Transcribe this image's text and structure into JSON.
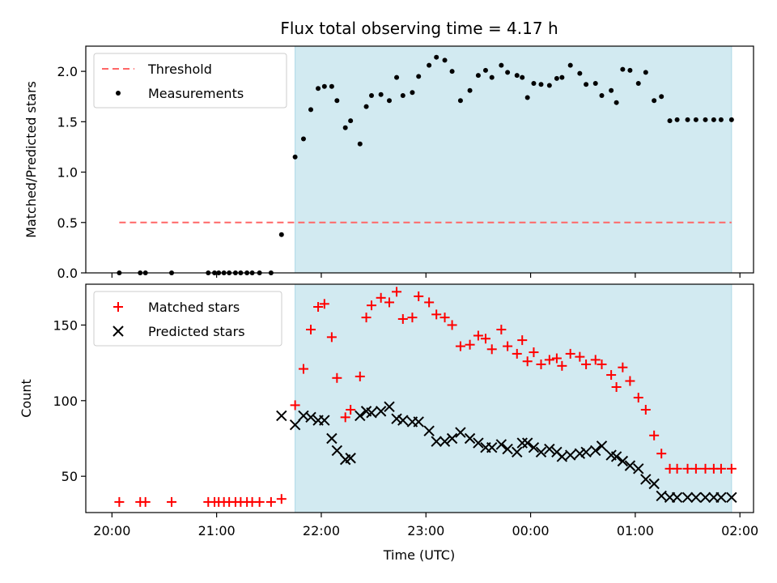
{
  "title": "Flux total observing time = 4.17 h",
  "xlabel": "Time (UTC)",
  "colors": {
    "shade": "#add8e6",
    "threshold": "#ff6666",
    "measurements": "#000000",
    "matched": "#ff0000",
    "predicted": "#000000"
  },
  "chart_data": [
    {
      "type": "scatter",
      "panel": "top",
      "ylabel": "Matched/Predicted stars",
      "ylim": [
        0,
        2.25
      ],
      "yticks": [
        0.0,
        0.5,
        1.0,
        1.5,
        2.0
      ],
      "ytick_labels": [
        "0.0",
        "0.5",
        "1.0",
        "1.5",
        "2.0"
      ],
      "x_unit": "hours since 20:00 UTC",
      "xlim": [
        -0.25,
        6.13
      ],
      "shaded_range": [
        1.75,
        5.92
      ],
      "legend": {
        "position": "top-left",
        "entries": [
          "Threshold",
          "Measurements"
        ]
      },
      "threshold": {
        "name": "Threshold",
        "y": 0.5,
        "x_range": [
          0.07,
          5.92
        ]
      },
      "series": [
        {
          "name": "Measurements",
          "x": [
            0.07,
            0.27,
            0.32,
            0.57,
            0.92,
            0.98,
            1.02,
            1.07,
            1.12,
            1.18,
            1.23,
            1.29,
            1.34,
            1.41,
            1.52,
            1.62,
            1.75,
            1.83,
            1.9,
            1.97,
            2.03,
            2.1,
            2.15,
            2.23,
            2.28,
            2.37,
            2.43,
            2.48,
            2.57,
            2.65,
            2.72,
            2.78,
            2.87,
            2.93,
            3.03,
            3.1,
            3.18,
            3.25,
            3.33,
            3.42,
            3.5,
            3.57,
            3.63,
            3.72,
            3.78,
            3.87,
            3.92,
            3.97,
            4.03,
            4.1,
            4.18,
            4.25,
            4.3,
            4.38,
            4.47,
            4.53,
            4.62,
            4.68,
            4.77,
            4.82,
            4.88,
            4.95,
            5.03,
            5.1,
            5.18,
            5.25,
            5.33,
            5.4,
            5.5,
            5.58,
            5.67,
            5.75,
            5.82,
            5.92
          ],
          "y": [
            0,
            0,
            0,
            0,
            0,
            0,
            0,
            0,
            0,
            0,
            0,
            0,
            0,
            0,
            0,
            0.38,
            1.15,
            1.33,
            1.62,
            1.83,
            1.85,
            1.85,
            1.71,
            1.44,
            1.51,
            1.28,
            1.65,
            1.76,
            1.77,
            1.71,
            1.94,
            1.76,
            1.79,
            1.95,
            2.06,
            2.14,
            2.11,
            2.0,
            1.71,
            1.81,
            1.96,
            2.01,
            1.94,
            2.06,
            1.99,
            1.96,
            1.94,
            1.74,
            1.88,
            1.87,
            1.86,
            1.93,
            1.94,
            2.06,
            1.98,
            1.87,
            1.88,
            1.76,
            1.81,
            1.69,
            2.02,
            2.01,
            1.88,
            1.99,
            1.71,
            1.75,
            1.51,
            1.52,
            1.52,
            1.52,
            1.52,
            1.52,
            1.52,
            1.52
          ]
        }
      ]
    },
    {
      "type": "scatter",
      "panel": "bottom",
      "ylabel": "Count",
      "ylim": [
        26,
        177
      ],
      "yticks": [
        50,
        100,
        150
      ],
      "ytick_labels": [
        "50",
        "100",
        "150"
      ],
      "x_unit": "hours since 20:00 UTC",
      "xlim": [
        -0.25,
        6.13
      ],
      "xticks": [
        0,
        1,
        2,
        3,
        4,
        5,
        6
      ],
      "xtick_labels": [
        "20:00",
        "21:00",
        "22:00",
        "23:00",
        "00:00",
        "01:00",
        "02:00"
      ],
      "shaded_range": [
        1.75,
        5.92
      ],
      "legend": {
        "position": "top-left",
        "entries": [
          "Matched stars",
          "Predicted stars"
        ]
      },
      "series": [
        {
          "name": "Matched stars",
          "x": [
            0.07,
            0.27,
            0.32,
            0.57,
            0.92,
            0.98,
            1.02,
            1.07,
            1.12,
            1.18,
            1.23,
            1.29,
            1.34,
            1.41,
            1.52,
            1.62,
            1.75,
            1.83,
            1.9,
            1.97,
            2.03,
            2.1,
            2.15,
            2.23,
            2.28,
            2.37,
            2.43,
            2.48,
            2.57,
            2.65,
            2.72,
            2.78,
            2.87,
            2.93,
            3.03,
            3.1,
            3.18,
            3.25,
            3.33,
            3.42,
            3.5,
            3.57,
            3.63,
            3.72,
            3.78,
            3.87,
            3.92,
            3.97,
            4.03,
            4.1,
            4.18,
            4.25,
            4.3,
            4.38,
            4.47,
            4.53,
            4.62,
            4.68,
            4.77,
            4.82,
            4.88,
            4.95,
            5.03,
            5.1,
            5.18,
            5.25,
            5.33,
            5.4,
            5.5,
            5.58,
            5.67,
            5.75,
            5.82,
            5.92
          ],
          "y": [
            33,
            33,
            33,
            33,
            33,
            33,
            33,
            33,
            33,
            33,
            33,
            33,
            33,
            33,
            33,
            35,
            97,
            121,
            147,
            162,
            164,
            142,
            115,
            89,
            94,
            116,
            155,
            163,
            168,
            165,
            172,
            154,
            155,
            169,
            165,
            157,
            155,
            150,
            136,
            137,
            143,
            141,
            134,
            147,
            136,
            131,
            140,
            126,
            132,
            124,
            127,
            128,
            123,
            131,
            129,
            124,
            127,
            124,
            117,
            109,
            122,
            113,
            102,
            94,
            77,
            65,
            55,
            55,
            55,
            55,
            55,
            55,
            55,
            55
          ]
        },
        {
          "name": "Predicted stars",
          "x": [
            1.62,
            1.75,
            1.83,
            1.9,
            1.97,
            2.03,
            2.1,
            2.15,
            2.23,
            2.28,
            2.37,
            2.43,
            2.48,
            2.57,
            2.65,
            2.72,
            2.78,
            2.87,
            2.93,
            3.03,
            3.1,
            3.18,
            3.25,
            3.33,
            3.42,
            3.5,
            3.57,
            3.63,
            3.72,
            3.78,
            3.87,
            3.92,
            3.97,
            4.03,
            4.1,
            4.18,
            4.25,
            4.3,
            4.38,
            4.47,
            4.53,
            4.62,
            4.68,
            4.77,
            4.82,
            4.88,
            4.95,
            5.03,
            5.1,
            5.18,
            5.25,
            5.33,
            5.4,
            5.5,
            5.58,
            5.67,
            5.75,
            5.82,
            5.92
          ],
          "y": [
            90,
            84,
            90,
            89,
            87,
            87,
            75,
            67,
            61,
            62,
            90,
            93,
            92,
            93,
            96,
            88,
            87,
            86,
            86,
            80,
            73,
            73,
            75,
            79,
            75,
            72,
            69,
            69,
            71,
            68,
            66,
            72,
            72,
            69,
            66,
            68,
            66,
            63,
            64,
            65,
            66,
            67,
            70,
            64,
            63,
            60,
            57,
            55,
            48,
            45,
            37,
            36,
            36,
            36,
            36,
            36,
            36,
            36,
            36
          ]
        }
      ]
    }
  ]
}
